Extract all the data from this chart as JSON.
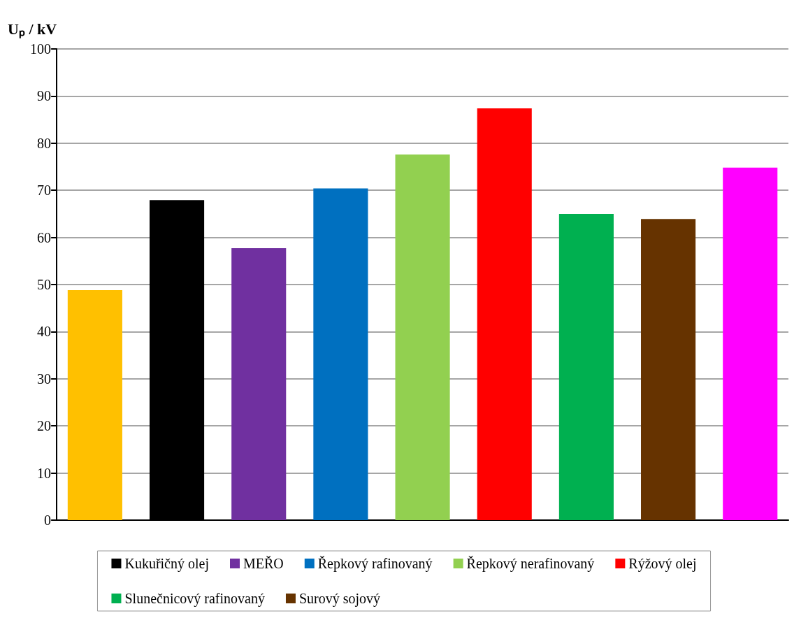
{
  "chart_data": {
    "type": "bar",
    "ylabel": "Uₚ / kV",
    "categories": [
      null
    ],
    "series": [
      {
        "color": "#ffc000",
        "values": [
          48.8
        ]
      },
      {
        "name": "Kukuřičný olej",
        "color": "#000000",
        "values": [
          67.9
        ]
      },
      {
        "name": "MEŘO",
        "color": "#7030a0",
        "values": [
          57.7
        ]
      },
      {
        "name": "Řepkový rafinovaný",
        "color": "#0070c0",
        "values": [
          70.4
        ]
      },
      {
        "name": "Řepkový nerafinovaný",
        "color": "#92d050",
        "values": [
          77.6
        ]
      },
      {
        "name": "Rýžový olej",
        "color": "#ff0000",
        "values": [
          87.4
        ]
      },
      {
        "name": "Slunečnicový rafinovaný",
        "color": "#00b050",
        "values": [
          65.0
        ]
      },
      {
        "name": "Surový sojový",
        "color": "#663300",
        "values": [
          63.9
        ]
      },
      {
        "color": "#ff00ff",
        "values": [
          74.8
        ]
      }
    ],
    "ylim": [
      0,
      100
    ],
    "yticks": [
      0,
      10,
      20,
      30,
      40,
      50,
      60,
      70,
      80,
      90,
      100
    ],
    "grid": "y",
    "legend": "bottom"
  }
}
